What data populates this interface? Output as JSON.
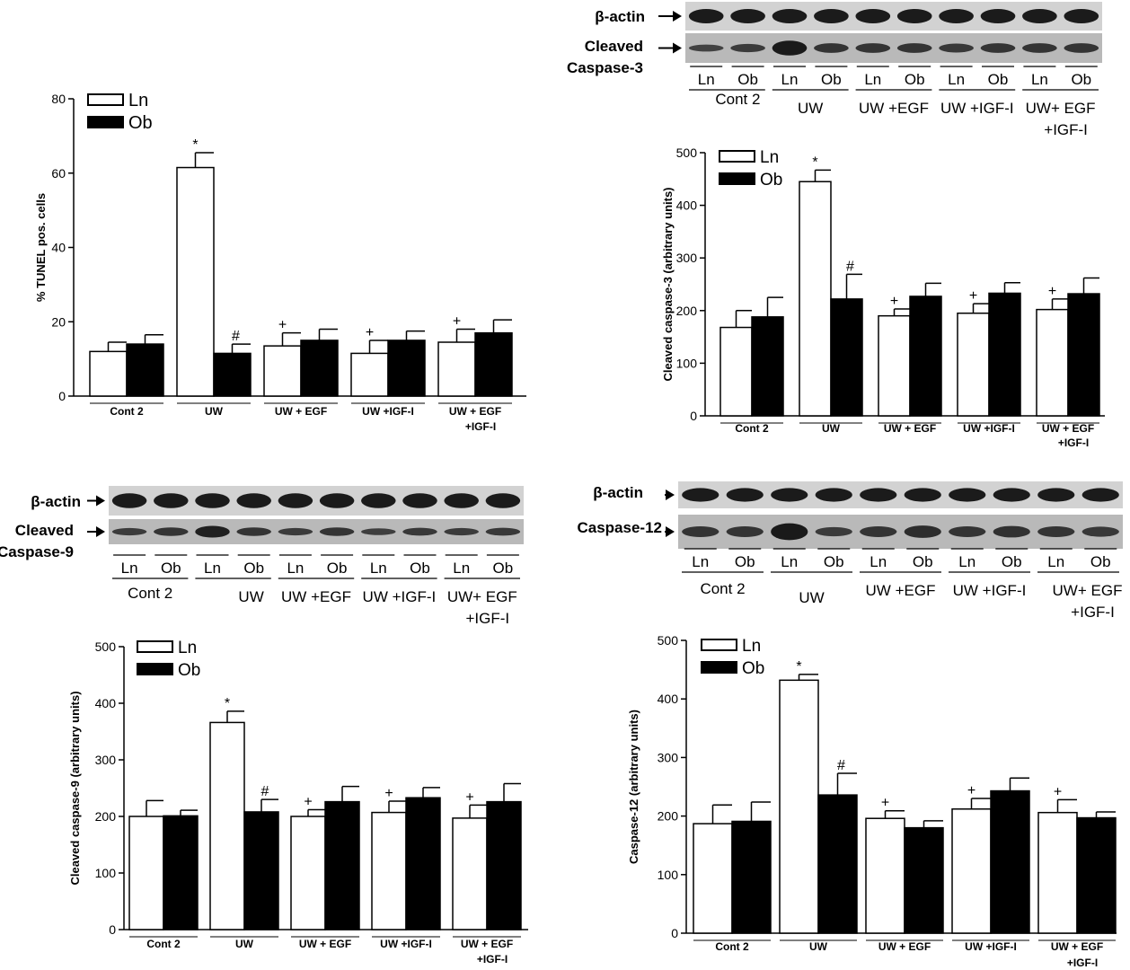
{
  "labels": {
    "ln": "Ln",
    "ob": "Ob",
    "beta_actin": "β-actin",
    "cleaved": "Cleaved",
    "caspase3": "Caspase-3",
    "caspase9": "Caspase-9",
    "caspase12": "Caspase-12"
  },
  "blot_groups": [
    {
      "line1": "Cont 2",
      "line2": ""
    },
    {
      "line1": "UW",
      "line2": ""
    },
    {
      "line1": "UW +EGF",
      "line2": ""
    },
    {
      "line1": "UW +IGF-I",
      "line2": ""
    },
    {
      "line1": "UW+ EGF",
      "line2": "+IGF-I"
    }
  ],
  "chart_data": [
    {
      "id": "tunel",
      "type": "bar",
      "ylabel": "% TUNEL pos. cells",
      "ylim": [
        0,
        80
      ],
      "yticks": [
        0,
        20,
        40,
        60,
        80
      ],
      "categories": [
        "Cont 2",
        "UW",
        "UW + EGF",
        "UW +IGF-I",
        "UW + EGF\n+IGF-I"
      ],
      "series": [
        {
          "name": "Ln",
          "values": [
            12,
            61.5,
            13.5,
            11.5,
            14.5
          ],
          "errors": [
            2.5,
            4,
            3.5,
            3.5,
            3.5
          ],
          "marks": [
            "",
            "*",
            "+",
            "+",
            "+"
          ]
        },
        {
          "name": "Ob",
          "values": [
            14,
            11.5,
            15,
            15,
            17
          ],
          "errors": [
            2.5,
            2.5,
            3,
            2.5,
            3.5
          ],
          "marks": [
            "",
            "#",
            "",
            "",
            ""
          ]
        }
      ]
    },
    {
      "id": "caspase3",
      "type": "bar",
      "ylabel": "Cleaved caspase-3 (arbitrary units)",
      "ylim": [
        0,
        500
      ],
      "yticks": [
        0,
        100,
        200,
        300,
        400,
        500
      ],
      "categories": [
        "Cont 2",
        "UW",
        "UW + EGF",
        "UW +IGF-I",
        "UW + EGF\n+IGF-I"
      ],
      "series": [
        {
          "name": "Ln",
          "values": [
            168,
            445,
            190,
            195,
            202
          ],
          "errors": [
            32,
            22,
            13,
            18,
            20
          ],
          "marks": [
            "",
            "*",
            "+",
            "+",
            "+"
          ]
        },
        {
          "name": "Ob",
          "values": [
            188,
            222,
            227,
            233,
            232
          ],
          "errors": [
            37,
            47,
            25,
            20,
            30
          ],
          "marks": [
            "",
            "#",
            "",
            "",
            ""
          ]
        }
      ]
    },
    {
      "id": "caspase9",
      "type": "bar",
      "ylabel": "Cleaved caspase-9 (arbitrary units)",
      "ylim": [
        0,
        500
      ],
      "yticks": [
        0,
        100,
        200,
        300,
        400,
        500
      ],
      "categories": [
        "Cont 2",
        "UW",
        "UW + EGF",
        "UW +IGF-I",
        "UW + EGF\n+IGF-I"
      ],
      "series": [
        {
          "name": "Ln",
          "values": [
            200,
            366,
            200,
            207,
            197
          ],
          "errors": [
            28,
            20,
            12,
            20,
            23
          ],
          "marks": [
            "",
            "*",
            "+",
            "+",
            "+"
          ]
        },
        {
          "name": "Ob",
          "values": [
            201,
            208,
            226,
            233,
            226
          ],
          "errors": [
            10,
            22,
            27,
            18,
            32
          ],
          "marks": [
            "",
            "#",
            "",
            "",
            ""
          ]
        }
      ]
    },
    {
      "id": "caspase12",
      "type": "bar",
      "ylabel": "Caspase-12 (arbitrary units)",
      "ylim": [
        0,
        500
      ],
      "yticks": [
        0,
        100,
        200,
        300,
        400,
        500
      ],
      "categories": [
        "Cont 2",
        "UW",
        "UW + EGF",
        "UW +IGF-I",
        "UW + EGF\n+IGF-I"
      ],
      "series": [
        {
          "name": "Ln",
          "values": [
            187,
            432,
            196,
            212,
            206
          ],
          "errors": [
            32,
            10,
            13,
            18,
            22
          ],
          "marks": [
            "",
            "*",
            "+",
            "+",
            "+"
          ]
        },
        {
          "name": "Ob",
          "values": [
            191,
            236,
            180,
            243,
            197
          ],
          "errors": [
            33,
            37,
            12,
            22,
            10
          ],
          "marks": [
            "",
            "#",
            "",
            "",
            ""
          ]
        }
      ]
    }
  ]
}
